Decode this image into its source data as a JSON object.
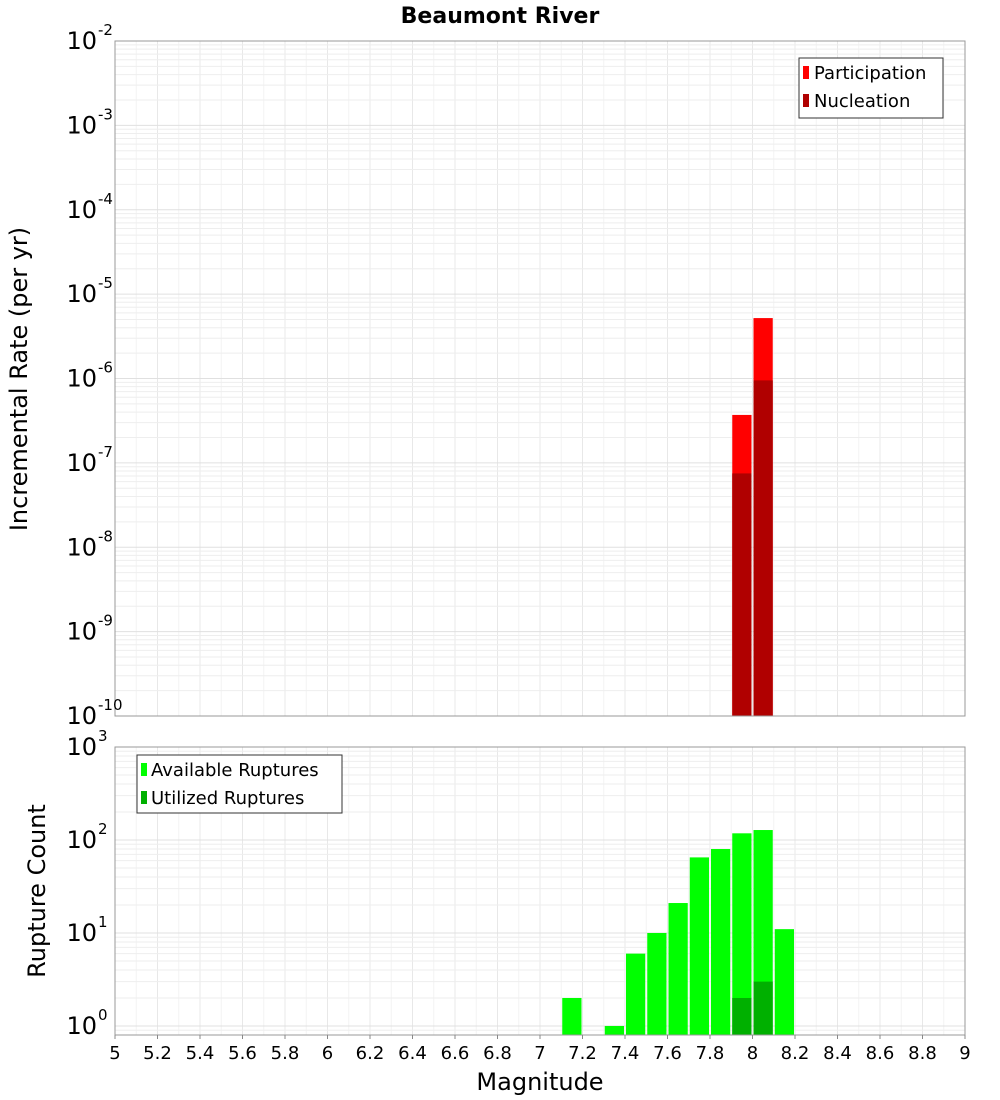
{
  "chart_data": [
    {
      "type": "bar",
      "title": "Beaumont River",
      "xlabel": "Magnitude",
      "ylabel": "Incremental Rate (per yr)",
      "yscale": "log",
      "xlim": [
        5,
        9
      ],
      "ylim": [
        1e-10,
        0.01
      ],
      "bin_width": 0.1,
      "legend_position": "top-right",
      "series": [
        {
          "name": "Participation",
          "color": "#ff0000",
          "points": [
            {
              "x": 7.95,
              "y": 3.7e-07
            },
            {
              "x": 8.05,
              "y": 5.2e-06
            }
          ]
        },
        {
          "name": "Nucleation",
          "color": "#b00000",
          "points": [
            {
              "x": 7.95,
              "y": 7.5e-08
            },
            {
              "x": 8.05,
              "y": 9.5e-07
            }
          ]
        }
      ]
    },
    {
      "type": "bar",
      "title": "",
      "xlabel": "Magnitude",
      "ylabel": "Rupture Count",
      "yscale": "log",
      "xlim": [
        5,
        9
      ],
      "ylim": [
        0.8,
        1000
      ],
      "bin_width": 0.1,
      "legend_position": "top-left",
      "series": [
        {
          "name": "Available Ruptures",
          "color": "#00ff00",
          "points": [
            {
              "x": 7.15,
              "y": 2
            },
            {
              "x": 7.35,
              "y": 1
            },
            {
              "x": 7.45,
              "y": 6
            },
            {
              "x": 7.55,
              "y": 10
            },
            {
              "x": 7.65,
              "y": 21
            },
            {
              "x": 7.75,
              "y": 65
            },
            {
              "x": 7.85,
              "y": 80
            },
            {
              "x": 7.95,
              "y": 118
            },
            {
              "x": 8.05,
              "y": 128
            },
            {
              "x": 8.15,
              "y": 11
            }
          ]
        },
        {
          "name": "Utilized Ruptures",
          "color": "#00b000",
          "points": [
            {
              "x": 7.95,
              "y": 2
            },
            {
              "x": 8.05,
              "y": 3
            }
          ]
        }
      ]
    }
  ],
  "x_tick_labels": [
    "5",
    "5.2",
    "5.4",
    "5.6",
    "5.8",
    "6",
    "6.2",
    "6.4",
    "6.6",
    "6.8",
    "7",
    "7.2",
    "7.4",
    "7.6",
    "7.8",
    "8",
    "8.2",
    "8.4",
    "8.6",
    "8.8",
    "9"
  ],
  "top_y_ticks": [
    {
      "value": 1e-10,
      "base": "10",
      "exp": "-10"
    },
    {
      "value": 1e-09,
      "base": "10",
      "exp": "-9"
    },
    {
      "value": 1e-08,
      "base": "10",
      "exp": "-8"
    },
    {
      "value": 1e-07,
      "base": "10",
      "exp": "-7"
    },
    {
      "value": 1e-06,
      "base": "10",
      "exp": "-6"
    },
    {
      "value": 1e-05,
      "base": "10",
      "exp": "-5"
    },
    {
      "value": 0.0001,
      "base": "10",
      "exp": "-4"
    },
    {
      "value": 0.001,
      "base": "10",
      "exp": "-3"
    },
    {
      "value": 0.01,
      "base": "10",
      "exp": "-2"
    }
  ],
  "bottom_y_ticks": [
    {
      "value": 1,
      "base": "10",
      "exp": "0"
    },
    {
      "value": 10,
      "base": "10",
      "exp": "1"
    },
    {
      "value": 100,
      "base": "10",
      "exp": "2"
    },
    {
      "value": 1000,
      "base": "10",
      "exp": "3"
    }
  ]
}
